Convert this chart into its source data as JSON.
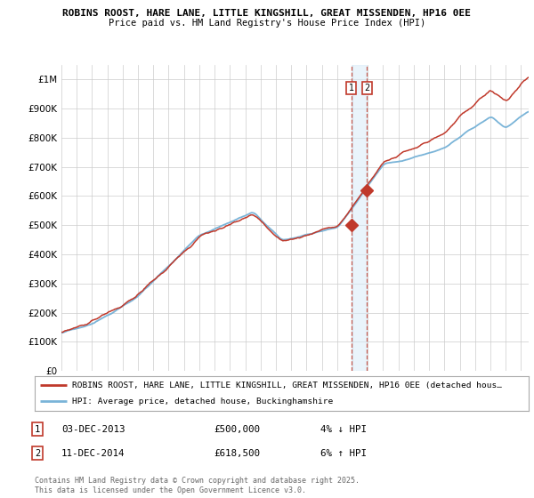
{
  "title_line1": "ROBINS ROOST, HARE LANE, LITTLE KINGSHILL, GREAT MISSENDEN, HP16 0EE",
  "title_line2": "Price paid vs. HM Land Registry's House Price Index (HPI)",
  "ylim": [
    0,
    1050000
  ],
  "yticks": [
    0,
    100000,
    200000,
    300000,
    400000,
    500000,
    600000,
    700000,
    800000,
    900000,
    1000000
  ],
  "ytick_labels": [
    "£0",
    "£100K",
    "£200K",
    "£300K",
    "£400K",
    "£500K",
    "£600K",
    "£700K",
    "£800K",
    "£900K",
    "£1M"
  ],
  "hpi_color": "#7ab4d8",
  "price_color": "#c0392b",
  "sale1_date": 2013.92,
  "sale1_price": 500000,
  "sale2_date": 2014.95,
  "sale2_price": 618500,
  "legend_label1": "ROBINS ROOST, HARE LANE, LITTLE KINGSHILL, GREAT MISSENDEN, HP16 0EE (detached hous…",
  "legend_label2": "HPI: Average price, detached house, Buckinghamshire",
  "footer": "Contains HM Land Registry data © Crown copyright and database right 2025.\nThis data is licensed under the Open Government Licence v3.0.",
  "background_color": "#ffffff",
  "grid_color": "#cccccc",
  "xlim_start": 1995,
  "xlim_end": 2025.5
}
